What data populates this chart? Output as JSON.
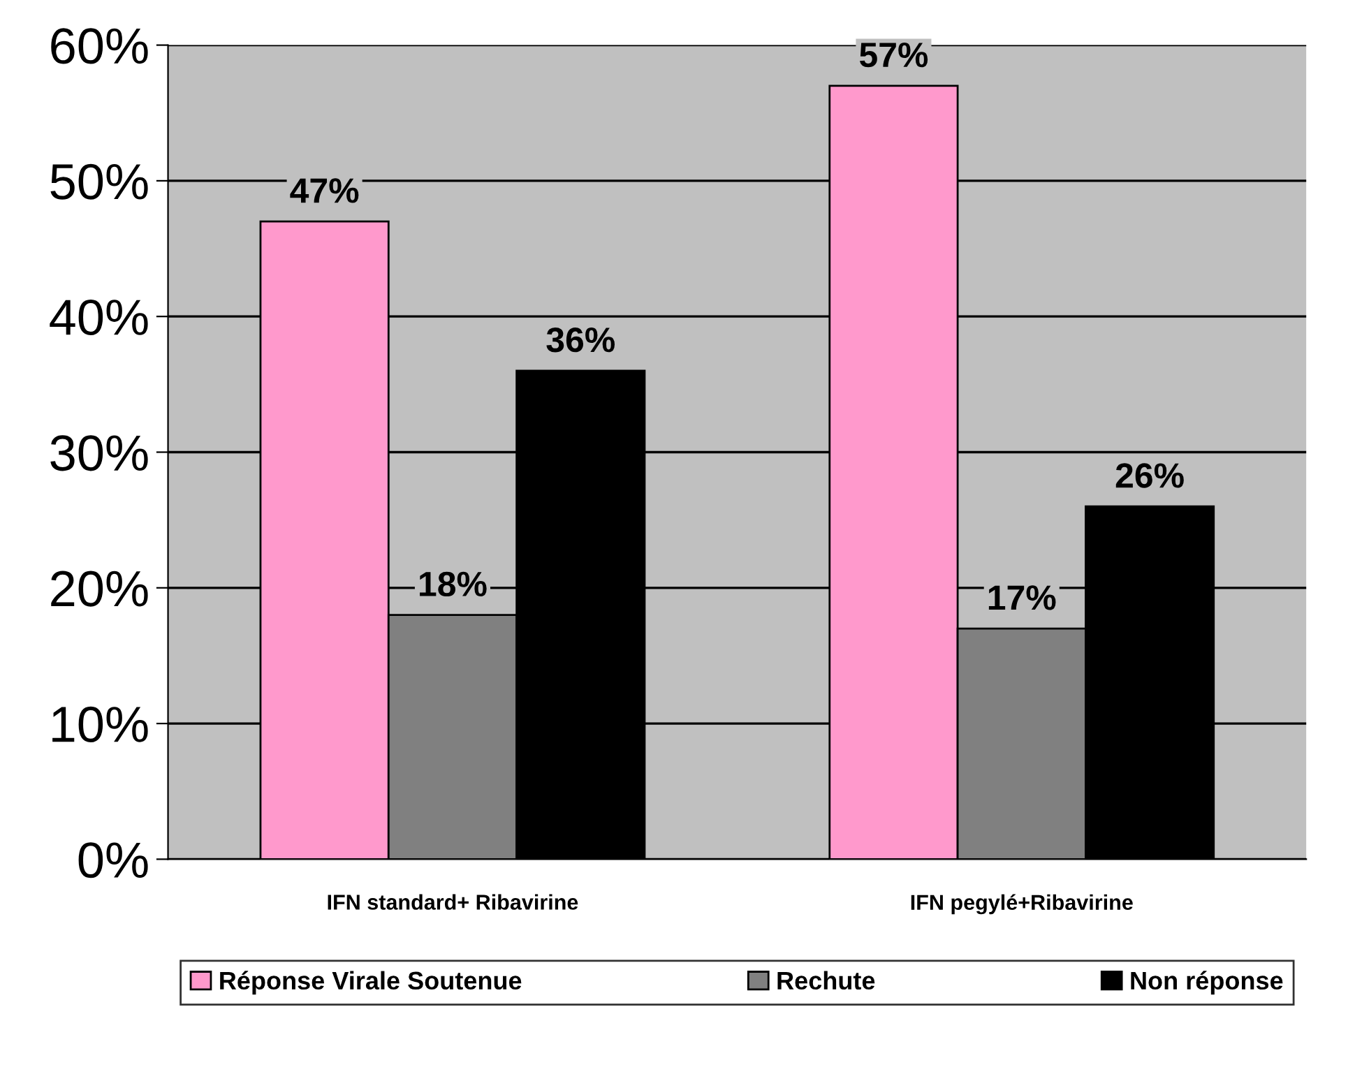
{
  "chart_data": {
    "type": "bar",
    "categories": [
      "IFN standard+ Ribavirine",
      "IFN pegylé+Ribavirine"
    ],
    "series": [
      {
        "name": "Réponse Virale Soutenue",
        "color": "#ff99cc",
        "values": [
          47,
          57
        ],
        "value_labels": [
          "47%",
          "57%"
        ]
      },
      {
        "name": "Rechute",
        "color": "#808080",
        "values": [
          18,
          17
        ],
        "value_labels": [
          "18%",
          "17%"
        ]
      },
      {
        "name": "Non réponse",
        "color": "#000000",
        "values": [
          36,
          26
        ],
        "value_labels": [
          "36%",
          "26%"
        ]
      }
    ],
    "ylim": [
      0,
      60
    ],
    "yticks": [
      {
        "value": 0,
        "label": "0%"
      },
      {
        "value": 10,
        "label": "10%"
      },
      {
        "value": 20,
        "label": "20%"
      },
      {
        "value": 30,
        "label": "30%"
      },
      {
        "value": 40,
        "label": "40%"
      },
      {
        "value": 50,
        "label": "50%"
      },
      {
        "value": 60,
        "label": "60%"
      }
    ],
    "grid": "y",
    "legend": "bottom"
  }
}
